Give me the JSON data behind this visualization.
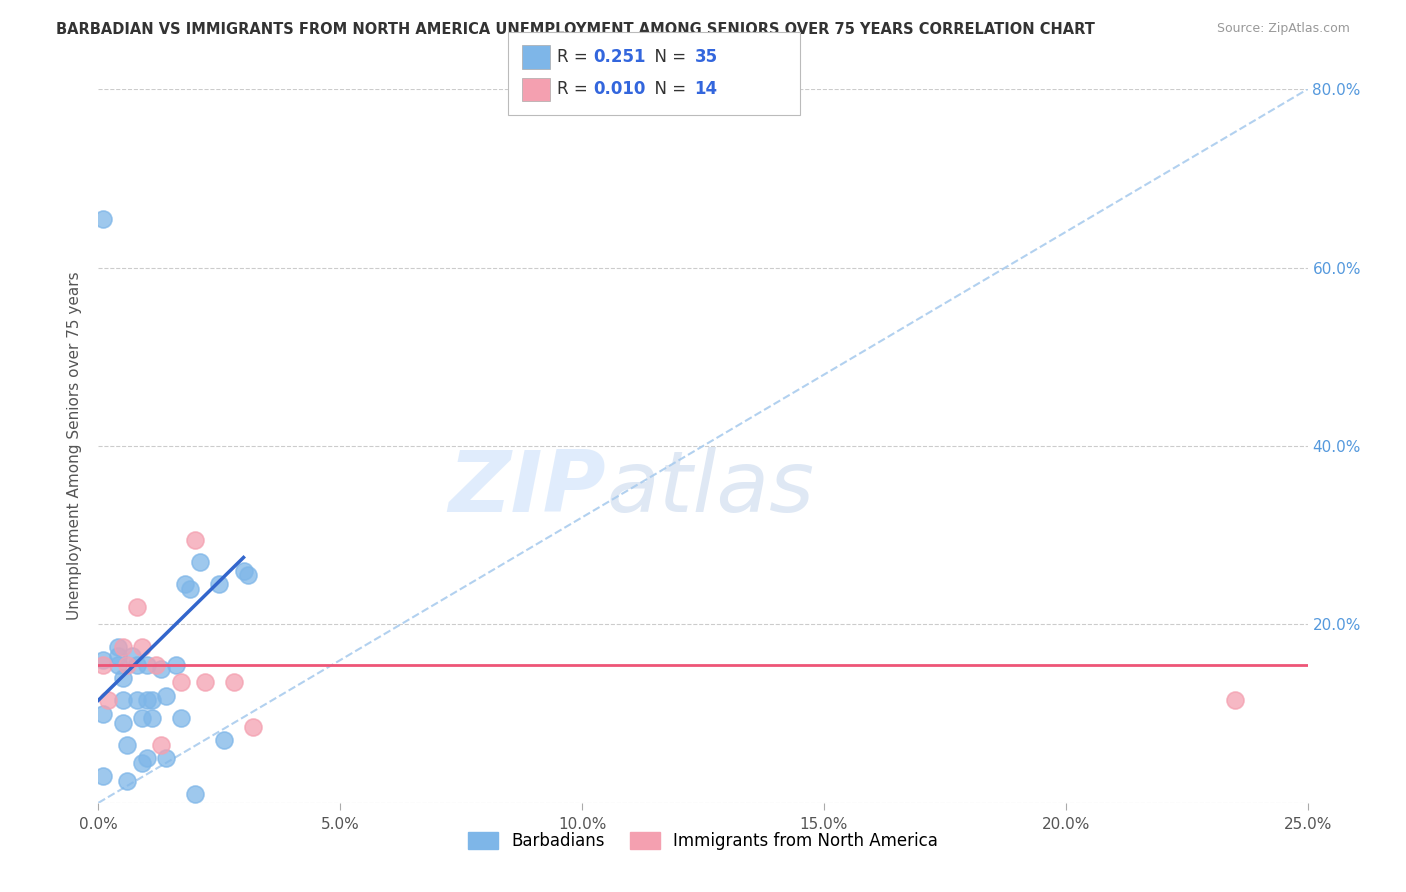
{
  "title": "BARBADIAN VS IMMIGRANTS FROM NORTH AMERICA UNEMPLOYMENT AMONG SENIORS OVER 75 YEARS CORRELATION CHART",
  "source": "Source: ZipAtlas.com",
  "ylabel": "Unemployment Among Seniors over 75 years",
  "xlim": [
    0,
    0.25
  ],
  "ylim": [
    0,
    0.8
  ],
  "xticks": [
    0.0,
    0.05,
    0.1,
    0.15,
    0.2,
    0.25
  ],
  "yticks": [
    0.0,
    0.2,
    0.4,
    0.6,
    0.8
  ],
  "xticklabels": [
    "0.0%",
    "5.0%",
    "10.0%",
    "15.0%",
    "20.0%",
    "25.0%"
  ],
  "yticklabels_right": [
    "",
    "20.0%",
    "40.0%",
    "60.0%",
    "80.0%"
  ],
  "blue_R": 0.251,
  "blue_N": 35,
  "pink_R": 0.01,
  "pink_N": 14,
  "blue_color": "#7EB6E8",
  "pink_color": "#F4A0B0",
  "blue_line_color": "#3366CC",
  "pink_line_color": "#EE5577",
  "diagonal_color": "#AACCEE",
  "watermark_zip": "ZIP",
  "watermark_atlas": "atlas",
  "blue_scatter_x": [
    0.001,
    0.001,
    0.001,
    0.001,
    0.004,
    0.004,
    0.004,
    0.005,
    0.005,
    0.005,
    0.006,
    0.006,
    0.007,
    0.008,
    0.008,
    0.009,
    0.009,
    0.01,
    0.01,
    0.01,
    0.011,
    0.011,
    0.013,
    0.014,
    0.014,
    0.016,
    0.017,
    0.018,
    0.019,
    0.02,
    0.021,
    0.025,
    0.026,
    0.03,
    0.031
  ],
  "blue_scatter_y": [
    0.655,
    0.16,
    0.1,
    0.03,
    0.175,
    0.165,
    0.155,
    0.14,
    0.115,
    0.09,
    0.065,
    0.025,
    0.165,
    0.155,
    0.115,
    0.095,
    0.045,
    0.155,
    0.115,
    0.05,
    0.115,
    0.095,
    0.15,
    0.12,
    0.05,
    0.155,
    0.095,
    0.245,
    0.24,
    0.01,
    0.27,
    0.245,
    0.07,
    0.26,
    0.255
  ],
  "pink_scatter_x": [
    0.001,
    0.002,
    0.005,
    0.006,
    0.008,
    0.009,
    0.012,
    0.013,
    0.017,
    0.02,
    0.022,
    0.028,
    0.032,
    0.235
  ],
  "pink_scatter_y": [
    0.155,
    0.115,
    0.175,
    0.155,
    0.22,
    0.175,
    0.155,
    0.065,
    0.135,
    0.295,
    0.135,
    0.135,
    0.085,
    0.115
  ],
  "blue_line_x0": 0.0,
  "blue_line_x1": 0.03,
  "blue_line_y0": 0.115,
  "blue_line_y1": 0.275,
  "pink_line_y": 0.155
}
